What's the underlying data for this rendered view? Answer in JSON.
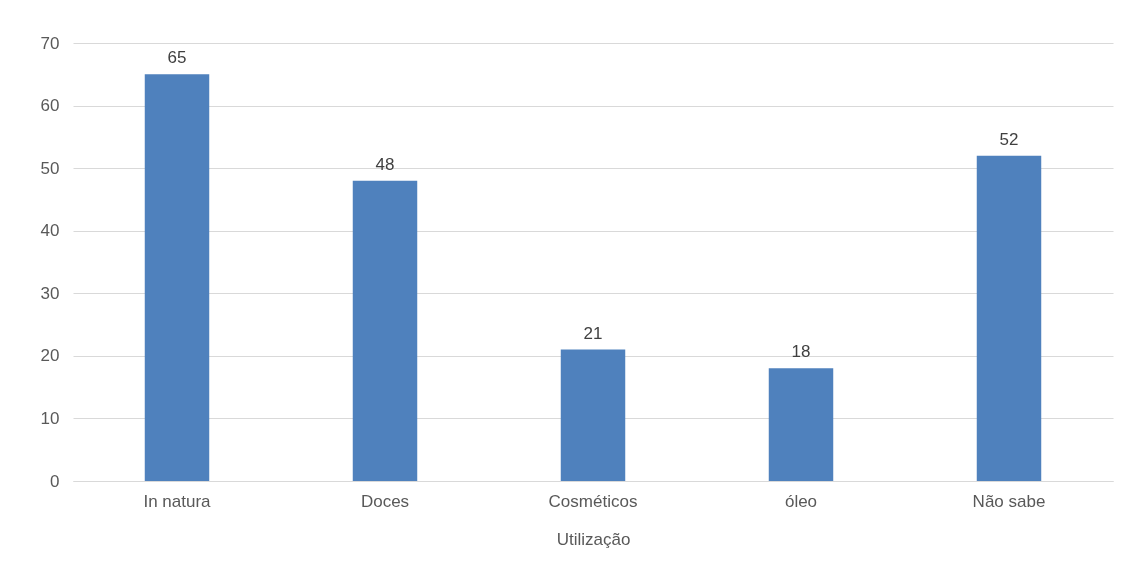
{
  "chart_data": {
    "type": "bar",
    "xlabel": "Utilização",
    "categories": [
      "In natura",
      "Doces",
      "Cosméticos",
      "óleo",
      "Não sabe"
    ],
    "values": [
      65,
      48,
      21,
      18,
      52
    ],
    "color": "#4f81bd",
    "ylim": [
      0,
      70
    ],
    "yticks": [
      0,
      10,
      20,
      30,
      40,
      50,
      60,
      70
    ],
    "grid": "y",
    "data_labels": true
  }
}
